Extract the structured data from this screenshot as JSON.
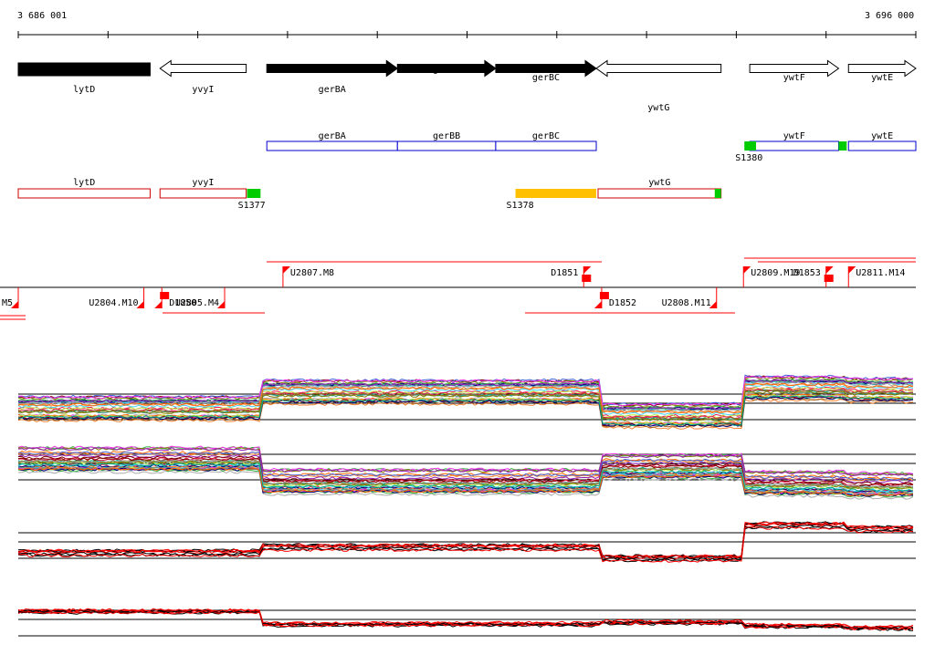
{
  "axis": {
    "start_label": "3 686 001",
    "end_label": "3 696 000",
    "start": 3686001,
    "end": 3696000
  },
  "colors": {
    "gene_fwd": "#000000",
    "gene_rev_outline": "#000000",
    "operon_blue": "#0000cc",
    "operon_red": "#cc0000",
    "signal_green": "#00cc00",
    "signal_orange": "#ffc000",
    "probe_red": "#ff0000"
  },
  "genes": [
    {
      "name": "lytD",
      "start": 3686001,
      "end": 3687470,
      "strand": "-",
      "style": "solid"
    },
    {
      "name": "yvyI",
      "start": 3687580,
      "end": 3688540,
      "strand": "-",
      "style": "open"
    },
    {
      "name": "gerBA",
      "start": 3688770,
      "end": 3690225,
      "strand": "+",
      "style": "solid"
    },
    {
      "name": "gerBB",
      "start": 3690225,
      "end": 3691320,
      "strand": "+",
      "style": "solid"
    },
    {
      "name": "gerBC",
      "start": 3691320,
      "end": 3692440,
      "strand": "+",
      "style": "solid"
    },
    {
      "name": "ywtG",
      "start": 3692440,
      "end": 3693830,
      "strand": "-",
      "style": "open"
    },
    {
      "name": "ywtF",
      "start": 3694150,
      "end": 3695140,
      "strand": "+",
      "style": "open"
    },
    {
      "name": "ywtE",
      "start": 3695250,
      "end": 3696000,
      "strand": "+",
      "style": "open"
    }
  ],
  "operons_fwd": [
    {
      "name": "gerBA",
      "start": 3688770,
      "end": 3690225
    },
    {
      "name": "gerBB",
      "start": 3690225,
      "end": 3691320
    },
    {
      "name": "gerBC",
      "start": 3691320,
      "end": 3692440
    },
    {
      "name": "ywtF",
      "start": 3694150,
      "end": 3695140
    },
    {
      "name": "ywtE",
      "start": 3695250,
      "end": 3696000
    }
  ],
  "operons_rev": [
    {
      "name": "lytD",
      "start": 3686001,
      "end": 3687470
    },
    {
      "name": "yvyI",
      "start": 3687580,
      "end": 3688540
    },
    {
      "name": "ywtG",
      "start": 3692460,
      "end": 3693830
    }
  ],
  "signals": [
    {
      "name": "S1380",
      "start": 3694090,
      "end": 3694220,
      "color": "green"
    },
    {
      "name": "",
      "start": 3695140,
      "end": 3695230,
      "color": "green"
    },
    {
      "name": "S1377",
      "start": 3688550,
      "end": 3688700,
      "color": "green"
    },
    {
      "name": "S1378",
      "start": 3691540,
      "end": 3692440,
      "color": "orange"
    },
    {
      "name": "",
      "start": 3693760,
      "end": 3693830,
      "color": "green"
    }
  ],
  "probes": [
    {
      "name": "U2807.M8",
      "x_pos": 3688950,
      "strand": "+"
    },
    {
      "name": "D1851",
      "x_pos": 3692300,
      "strand": "+"
    },
    {
      "name": "U2809.M19",
      "x_pos": 3694080,
      "strand": "+"
    },
    {
      "name": "D1853",
      "x_pos": 3695000,
      "strand": "+"
    },
    {
      "name": "U2811.M14",
      "x_pos": 3695250,
      "strand": "+"
    },
    {
      "name": ".M5",
      "x_pos": 3686001,
      "strand": "-"
    },
    {
      "name": "U2804.M10",
      "x_pos": 3687400,
      "strand": "-"
    },
    {
      "name": "D1850",
      "x_pos": 3687600,
      "strand": "-"
    },
    {
      "name": "U2805.M4",
      "x_pos": 3688300,
      "strand": "-"
    },
    {
      "name": "D1852",
      "x_pos": 3692500,
      "strand": "-"
    },
    {
      "name": "U2808.M11",
      "x_pos": 3693780,
      "strand": "-"
    }
  ]
}
